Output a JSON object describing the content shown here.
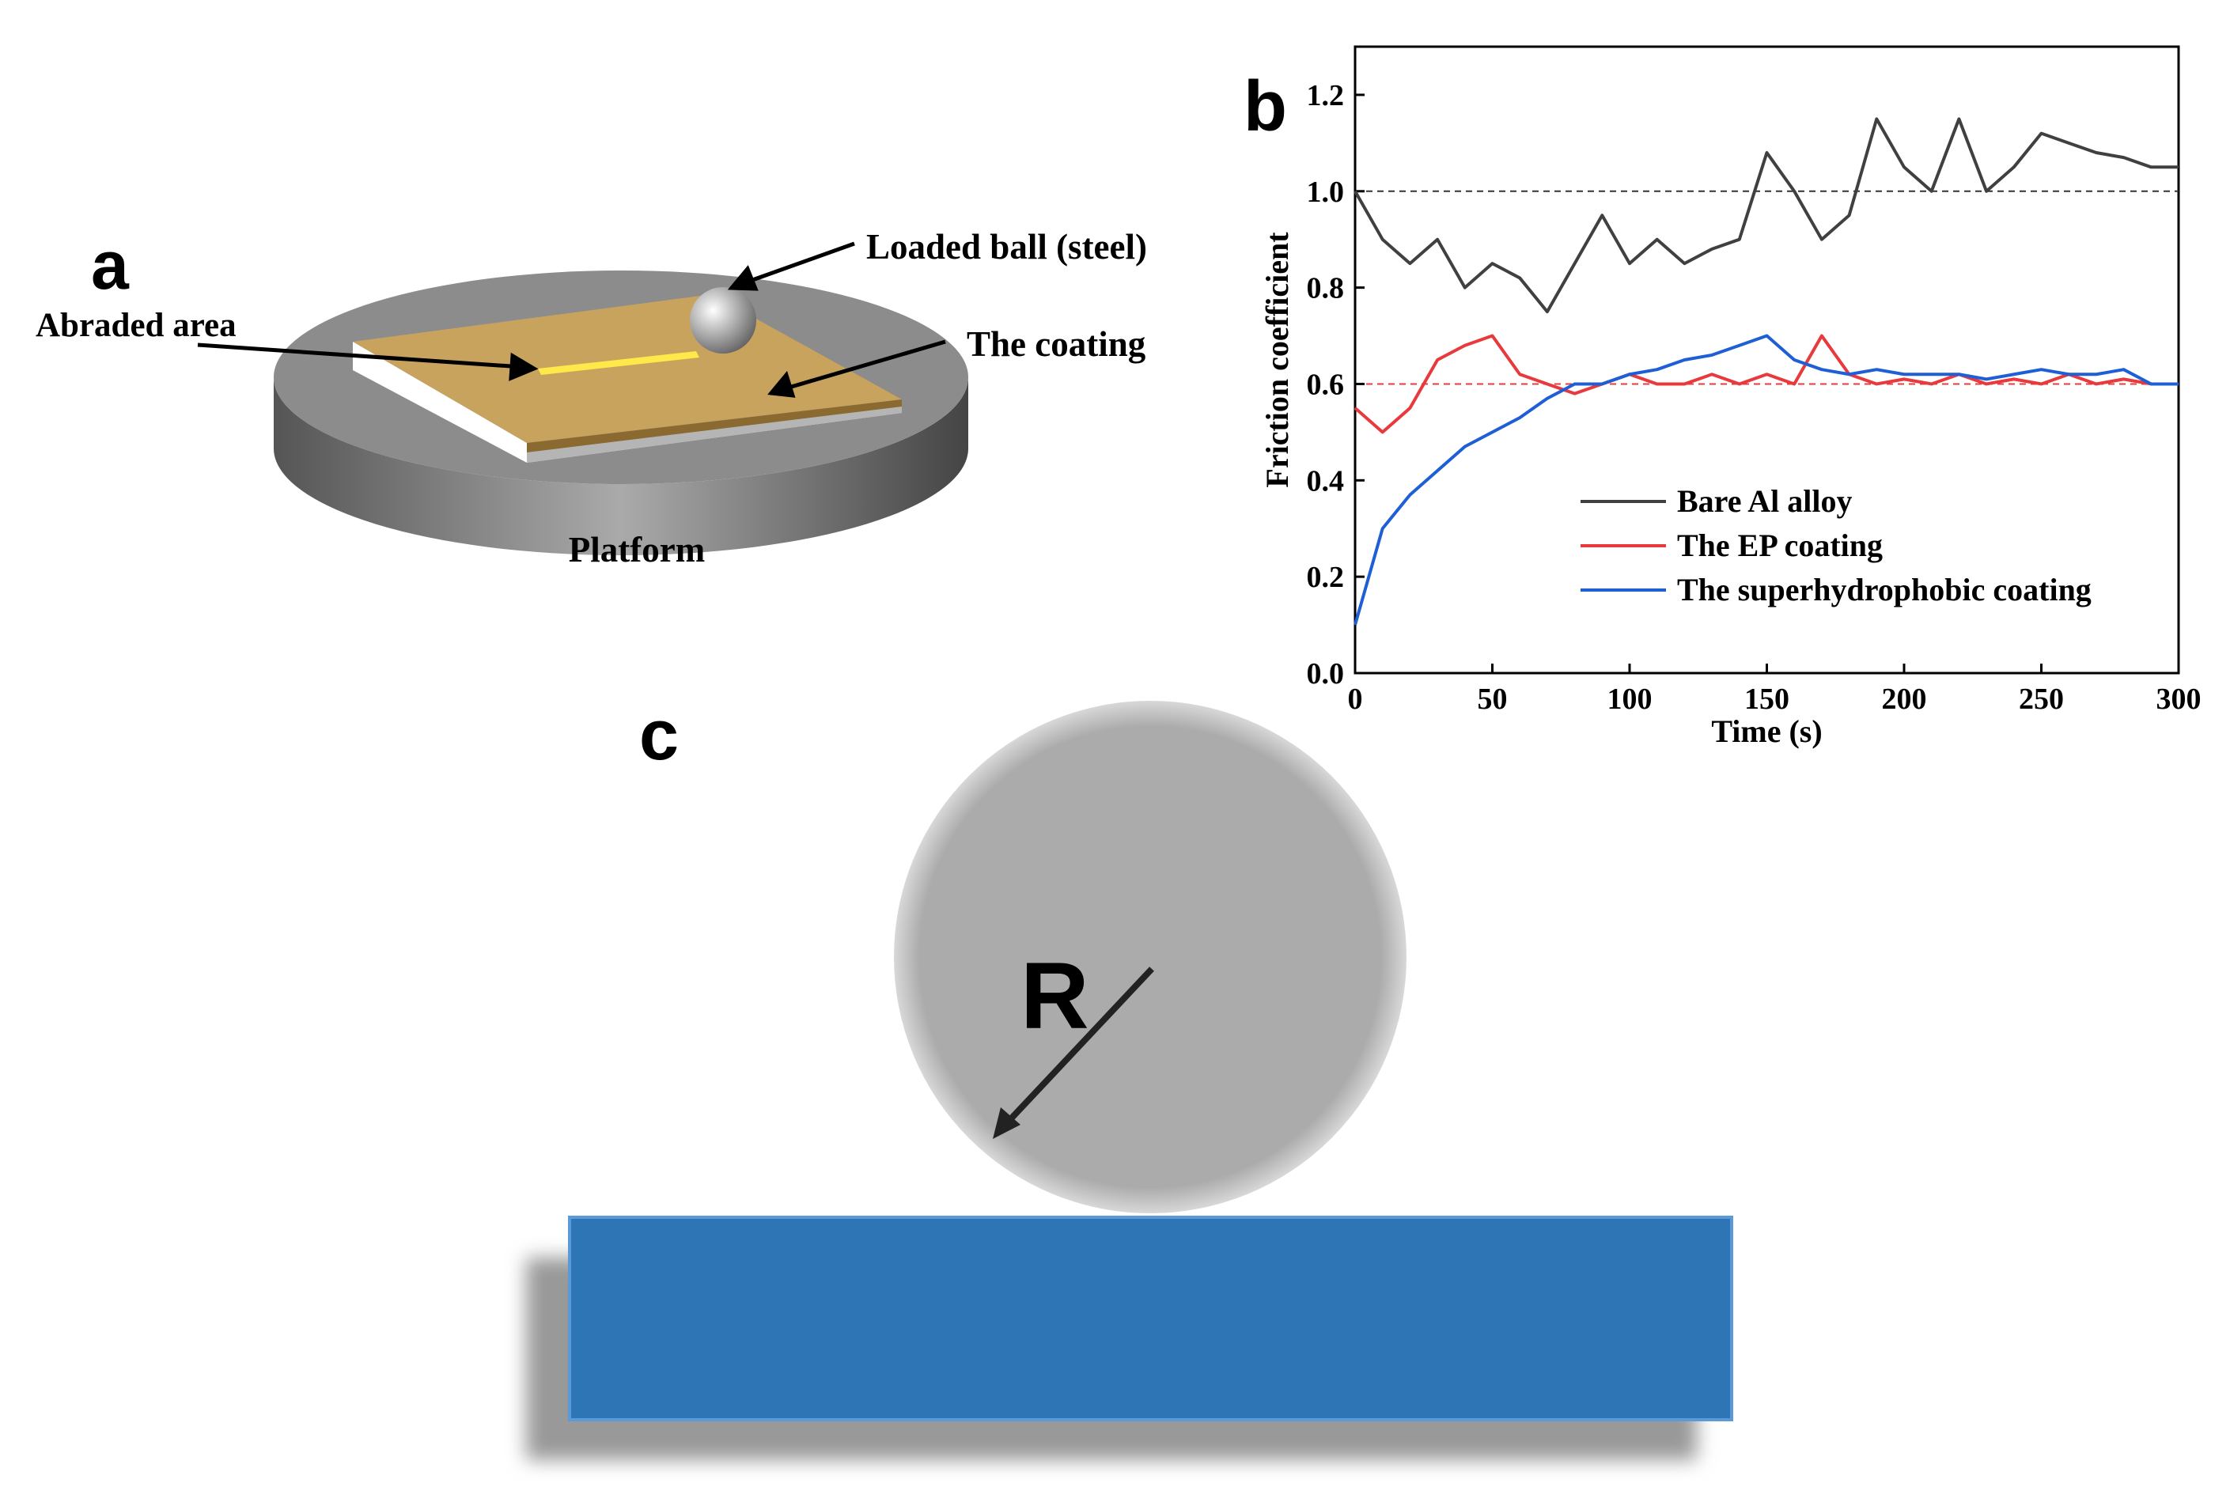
{
  "panels": {
    "a": {
      "label": "a",
      "abraded": "Abraded area",
      "ball": "Loaded ball (steel)",
      "coating": "The coating",
      "platform": "Platform"
    },
    "b": {
      "label": "b"
    },
    "c": {
      "label": "c",
      "radius": "R"
    }
  },
  "chart_data": {
    "type": "line",
    "x_label": "Time (s)",
    "y_label": "Friction coefficient",
    "x": [
      0,
      10,
      20,
      30,
      40,
      50,
      60,
      70,
      80,
      90,
      100,
      110,
      120,
      130,
      140,
      150,
      160,
      170,
      180,
      190,
      200,
      210,
      220,
      230,
      240,
      250,
      260,
      270,
      280,
      290,
      300
    ],
    "series": [
      {
        "name": "Bare Al alloy",
        "color": "#404040",
        "values": [
          1.0,
          0.9,
          0.85,
          0.9,
          0.8,
          0.85,
          0.82,
          0.75,
          0.85,
          0.95,
          0.85,
          0.9,
          0.85,
          0.88,
          0.9,
          1.08,
          1.0,
          0.9,
          0.95,
          1.15,
          1.05,
          1.0,
          1.15,
          1.0,
          1.05,
          1.12,
          1.1,
          1.08,
          1.07,
          1.05,
          1.05
        ]
      },
      {
        "name": "The EP coating",
        "color": "#e8393c",
        "values": [
          0.55,
          0.5,
          0.55,
          0.65,
          0.68,
          0.7,
          0.62,
          0.6,
          0.58,
          0.6,
          0.62,
          0.6,
          0.6,
          0.62,
          0.6,
          0.62,
          0.6,
          0.7,
          0.62,
          0.6,
          0.61,
          0.6,
          0.62,
          0.6,
          0.61,
          0.6,
          0.62,
          0.6,
          0.61,
          0.6,
          0.6
        ]
      },
      {
        "name": "The superhydrophobic coating",
        "color": "#1f5fd6",
        "values": [
          0.1,
          0.3,
          0.37,
          0.42,
          0.47,
          0.5,
          0.53,
          0.57,
          0.6,
          0.6,
          0.62,
          0.63,
          0.65,
          0.66,
          0.68,
          0.7,
          0.65,
          0.63,
          0.62,
          0.63,
          0.62,
          0.62,
          0.62,
          0.61,
          0.62,
          0.63,
          0.62,
          0.62,
          0.63,
          0.6,
          0.6
        ]
      }
    ],
    "reference_lines": [
      {
        "value": 1.0,
        "color": "#333333"
      },
      {
        "value": 0.6,
        "color": "#e8393c"
      }
    ],
    "xlim": [
      0,
      300
    ],
    "xticks": [
      0,
      50,
      100,
      150,
      200,
      250,
      300
    ],
    "ylim": [
      0,
      1.3
    ],
    "yticks": [
      {
        "value": 0,
        "label": "0.0"
      },
      {
        "value": 0.2,
        "label": "0.2"
      },
      {
        "value": 0.4,
        "label": "0.4"
      },
      {
        "value": 0.6,
        "label": "0.6"
      },
      {
        "value": 0.8,
        "label": "0.8"
      },
      {
        "value": 1.0,
        "label": "1.0"
      },
      {
        "value": 1.2,
        "label": "1.2"
      }
    ],
    "legend": "lower right",
    "grid": false
  }
}
